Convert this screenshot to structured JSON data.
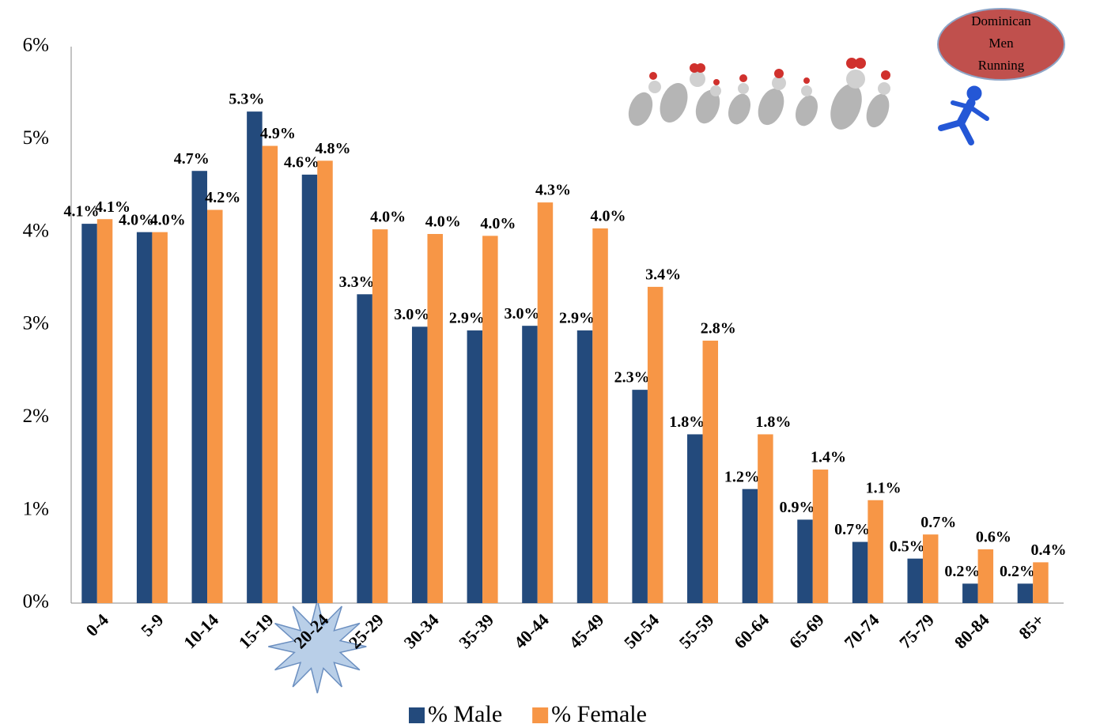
{
  "chart_data": {
    "type": "bar",
    "categories": [
      "0-4",
      "5-9",
      "10-14",
      "15-19",
      "20-24",
      "25-29",
      "30-34",
      "35-39",
      "40-44",
      "45-49",
      "50-54",
      "55-59",
      "60-64",
      "65-69",
      "70-74",
      "75-79",
      "80-84",
      "85+"
    ],
    "series": [
      {
        "name": "% Male",
        "color": "#234a7c",
        "values": [
          4.09,
          4.0,
          4.66,
          5.3,
          4.62,
          3.33,
          2.98,
          2.94,
          2.99,
          2.94,
          2.3,
          1.82,
          1.23,
          0.9,
          0.66,
          0.48,
          0.21,
          0.21
        ],
        "value_labels": [
          "4.1%",
          "4.0%",
          "4.7%",
          "5.3%",
          "4.6%",
          "3.3%",
          "3.0%",
          "2.9%",
          "3.0%",
          "2.9%",
          "2.3%",
          "1.8%",
          "1.2%",
          "0.9%",
          "0.7%",
          "0.5%",
          "0.2%",
          "0.2%"
        ]
      },
      {
        "name": "% Female",
        "color": "#f79646",
        "values": [
          4.14,
          4.0,
          4.24,
          4.93,
          4.77,
          4.03,
          3.98,
          3.96,
          4.32,
          4.04,
          3.41,
          2.83,
          1.82,
          1.44,
          1.11,
          0.74,
          0.58,
          0.44
        ],
        "value_labels": [
          "4.1%",
          "4.0%",
          "4.2%",
          "4.9%",
          "4.8%",
          "4.0%",
          "4.0%",
          "4.0%",
          "4.3%",
          "4.0%",
          "3.4%",
          "2.8%",
          "1.8%",
          "1.4%",
          "1.1%",
          "0.7%",
          "0.6%",
          "0.4%"
        ]
      }
    ],
    "ylim": [
      0,
      6
    ],
    "yticks": [
      {
        "value": 0,
        "label": "0%"
      },
      {
        "value": 1,
        "label": "1%"
      },
      {
        "value": 2,
        "label": "2%"
      },
      {
        "value": 3,
        "label": "3%"
      },
      {
        "value": 4,
        "label": "4%"
      },
      {
        "value": 5,
        "label": "5%"
      },
      {
        "value": 6,
        "label": "6%"
      }
    ],
    "grid": false,
    "legend": "bottom",
    "highlight_category": 4,
    "annotation": [
      "Dominican",
      "Men",
      "Running"
    ]
  }
}
